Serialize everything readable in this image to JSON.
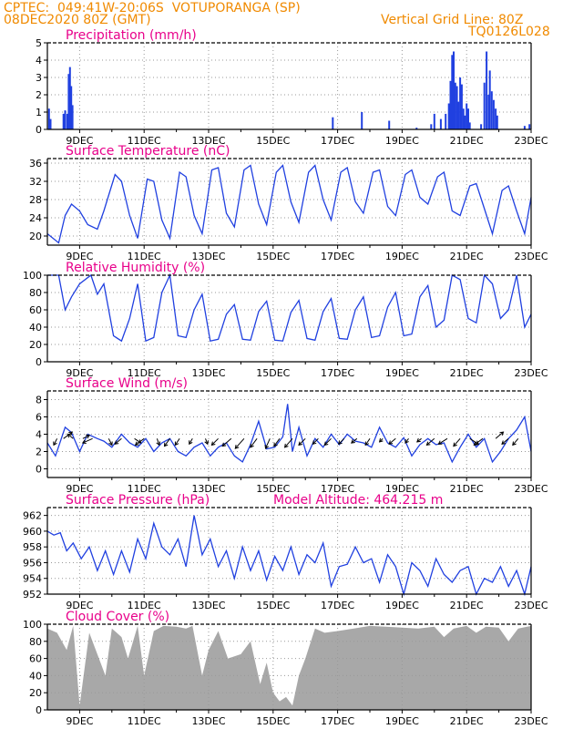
{
  "header": {
    "line1_left": "CPTEC:  049:41W-20:06S  VOTUPORANGA (SP)",
    "line2_left": "08DEC2020 80Z (GMT)",
    "line1_right": "Vertical Grid Line: 80Z",
    "line2_right": "TQ0126L028"
  },
  "colors": {
    "header": "#f08a00",
    "title": "#e8008a",
    "series": "#2040e0",
    "cloud_fill": "#a8a8a8",
    "grid": "#999999",
    "frame": "#000000"
  },
  "chart_data": [
    {
      "id": "precip",
      "type": "bar",
      "title": "Precipitation (mm/h)",
      "ylim": [
        0,
        5
      ],
      "yticks": [
        0,
        1,
        2,
        3,
        4,
        5
      ],
      "xlim": [
        8.0,
        23.0
      ],
      "xticks": [
        9,
        11,
        13,
        15,
        17,
        19,
        21,
        23
      ],
      "xticklabels": [
        "9DEC",
        "11DEC",
        "13DEC",
        "15DEC",
        "17DEC",
        "19DEC",
        "21DEC",
        "23DEC"
      ],
      "grid": true,
      "x": [
        8.05,
        8.1,
        8.5,
        8.55,
        8.62,
        8.66,
        8.7,
        8.74,
        8.78,
        16.85,
        17.75,
        18.6,
        19.45,
        19.9,
        20.0,
        20.2,
        20.35,
        20.45,
        20.5,
        20.55,
        20.6,
        20.65,
        20.7,
        20.75,
        20.8,
        20.85,
        20.9,
        20.95,
        21.0,
        21.05,
        21.1,
        21.45,
        21.55,
        21.62,
        21.68,
        21.72,
        21.78,
        21.84,
        21.9,
        21.95,
        22.8,
        22.95
      ],
      "values": [
        1.2,
        0.6,
        0.9,
        1.1,
        0.9,
        3.2,
        3.6,
        2.5,
        1.4,
        0.7,
        1.0,
        0.5,
        0.1,
        0.3,
        0.9,
        0.6,
        0.9,
        1.5,
        2.8,
        4.3,
        4.5,
        2.7,
        2.5,
        1.6,
        3.0,
        2.6,
        1.2,
        0.8,
        1.5,
        1.2,
        0.4,
        0.3,
        2.7,
        4.5,
        2.0,
        3.4,
        2.2,
        1.7,
        1.2,
        0.8,
        0.2,
        0.3
      ]
    },
    {
      "id": "temp",
      "type": "line",
      "title": "Surface Temperature (nC)",
      "ylim": [
        18,
        37
      ],
      "yticks": [
        20,
        24,
        28,
        32,
        36
      ],
      "xlim": [
        8.0,
        23.0
      ],
      "xticks": [
        9,
        11,
        13,
        15,
        17,
        19,
        21,
        23
      ],
      "xticklabels": [
        "9DEC",
        "11DEC",
        "13DEC",
        "15DEC",
        "17DEC",
        "19DEC",
        "21DEC",
        "23DEC"
      ],
      "grid": true,
      "x": [
        8.0,
        8.35,
        8.55,
        8.75,
        9.0,
        9.25,
        9.55,
        9.75,
        10.1,
        10.3,
        10.55,
        10.8,
        11.1,
        11.3,
        11.55,
        11.8,
        12.1,
        12.3,
        12.55,
        12.8,
        13.1,
        13.3,
        13.55,
        13.8,
        14.1,
        14.3,
        14.55,
        14.8,
        15.1,
        15.3,
        15.55,
        15.8,
        16.1,
        16.3,
        16.55,
        16.8,
        17.1,
        17.3,
        17.55,
        17.8,
        18.1,
        18.3,
        18.55,
        18.8,
        19.1,
        19.3,
        19.55,
        19.8,
        20.1,
        20.3,
        20.55,
        20.8,
        21.1,
        21.3,
        21.55,
        21.8,
        22.1,
        22.3,
        22.55,
        22.8,
        23.0
      ],
      "values": [
        20.5,
        18.5,
        24.5,
        27,
        25.5,
        22.5,
        21.5,
        25.5,
        33.5,
        32,
        24.5,
        19.5,
        32.5,
        32,
        23.5,
        19.5,
        34,
        33,
        24.5,
        20.5,
        34.5,
        35,
        25,
        22,
        34.5,
        35.5,
        27,
        22.5,
        34,
        35.5,
        27.5,
        23,
        34,
        35.5,
        28,
        23.5,
        34,
        35,
        27.5,
        25,
        34,
        34.5,
        26.5,
        24.5,
        33.5,
        34.5,
        28.5,
        27,
        33,
        34,
        25.5,
        24.5,
        31,
        31.5,
        26,
        20.5,
        30,
        31,
        25.5,
        20.5,
        28.5
      ]
    },
    {
      "id": "rh",
      "type": "line",
      "title": "Relative Humidity (%)",
      "ylim": [
        0,
        100
      ],
      "yticks": [
        0,
        20,
        40,
        60,
        80,
        100
      ],
      "xlim": [
        8.0,
        23.0
      ],
      "xticks": [
        9,
        11,
        13,
        15,
        17,
        19,
        21,
        23
      ],
      "xticklabels": [
        "9DEC",
        "11DEC",
        "13DEC",
        "15DEC",
        "17DEC",
        "19DEC",
        "21DEC",
        "23DEC"
      ],
      "grid": true,
      "x": [
        8.0,
        8.35,
        8.55,
        8.75,
        9.0,
        9.35,
        9.55,
        9.75,
        10.05,
        10.3,
        10.55,
        10.8,
        11.05,
        11.3,
        11.55,
        11.8,
        12.05,
        12.3,
        12.55,
        12.8,
        13.05,
        13.3,
        13.55,
        13.8,
        14.05,
        14.3,
        14.55,
        14.8,
        15.05,
        15.3,
        15.55,
        15.8,
        16.05,
        16.3,
        16.55,
        16.8,
        17.05,
        17.3,
        17.55,
        17.8,
        18.05,
        18.3,
        18.55,
        18.8,
        19.05,
        19.3,
        19.55,
        19.8,
        20.05,
        20.3,
        20.55,
        20.8,
        21.05,
        21.3,
        21.55,
        21.8,
        22.05,
        22.3,
        22.55,
        22.8,
        23.0
      ],
      "values": [
        100,
        100,
        60,
        75,
        90,
        100,
        78,
        90,
        30,
        24,
        50,
        90,
        24,
        28,
        80,
        100,
        30,
        28,
        60,
        78,
        24,
        26,
        55,
        66,
        26,
        25,
        58,
        70,
        25,
        24,
        57,
        71,
        27,
        25,
        58,
        73,
        27,
        26,
        60,
        75,
        28,
        30,
        63,
        80,
        30,
        32,
        75,
        88,
        40,
        48,
        100,
        95,
        50,
        45,
        100,
        90,
        50,
        60,
        100,
        40,
        55
      ]
    },
    {
      "id": "wind",
      "type": "line",
      "title": "Surface Wind (m/s)",
      "ylim": [
        -1,
        9
      ],
      "yticks": [
        0,
        2,
        4,
        6,
        8
      ],
      "xlim": [
        8.0,
        23.0
      ],
      "xticks": [
        9,
        11,
        13,
        15,
        17,
        19,
        21,
        23
      ],
      "xticklabels": [
        "9DEC",
        "11DEC",
        "13DEC",
        "15DEC",
        "17DEC",
        "19DEC",
        "21DEC",
        "23DEC"
      ],
      "grid": true,
      "x": [
        8.0,
        8.25,
        8.55,
        8.75,
        9.0,
        9.25,
        9.55,
        9.75,
        10.0,
        10.3,
        10.55,
        10.8,
        11.05,
        11.3,
        11.55,
        11.8,
        12.05,
        12.3,
        12.55,
        12.8,
        13.05,
        13.3,
        13.55,
        13.8,
        14.05,
        14.3,
        14.55,
        14.8,
        15.05,
        15.3,
        15.45,
        15.6,
        15.8,
        16.05,
        16.3,
        16.55,
        16.8,
        17.05,
        17.3,
        17.55,
        17.8,
        18.05,
        18.3,
        18.55,
        18.8,
        19.05,
        19.3,
        19.55,
        19.8,
        20.05,
        20.3,
        20.55,
        20.8,
        21.05,
        21.3,
        21.55,
        21.8,
        22.05,
        22.3,
        22.55,
        22.8,
        23.0
      ],
      "values": [
        3,
        1.5,
        4.8,
        4.2,
        2,
        4,
        3.5,
        3.2,
        2.5,
        4,
        3,
        2.5,
        3.5,
        2,
        3,
        3.5,
        2,
        1.5,
        2.5,
        3,
        1.5,
        2.5,
        3,
        1.5,
        0.8,
        2.8,
        5.5,
        2.3,
        2.5,
        3.7,
        7.5,
        2,
        4.8,
        1.5,
        3.5,
        2.5,
        4,
        2.8,
        4,
        3.2,
        3,
        2.5,
        4.8,
        3,
        2.5,
        3.6,
        1.5,
        2.8,
        3.5,
        2.8,
        3,
        0.8,
        2.5,
        4,
        2.5,
        3.5,
        0.8,
        2,
        3.5,
        4.5,
        6,
        2
      ]
    },
    {
      "id": "pressure",
      "type": "line",
      "title": "Surface Pressure (hPa)",
      "annotation": "Model Altitude: 464.215 m",
      "ylim": [
        952,
        963
      ],
      "yticks": [
        952,
        954,
        956,
        958,
        960,
        962
      ],
      "xlim": [
        8.0,
        23.0
      ],
      "xticks": [
        9,
        11,
        13,
        15,
        17,
        19,
        21,
        23
      ],
      "xticklabels": [
        "9DEC",
        "11DEC",
        "13DEC",
        "15DEC",
        "17DEC",
        "19DEC",
        "21DEC",
        "23DEC"
      ],
      "grid": true,
      "x": [
        8.0,
        8.2,
        8.4,
        8.6,
        8.8,
        9.05,
        9.3,
        9.55,
        9.8,
        10.05,
        10.3,
        10.55,
        10.8,
        11.05,
        11.3,
        11.55,
        11.8,
        12.05,
        12.3,
        12.55,
        12.8,
        13.05,
        13.3,
        13.55,
        13.8,
        14.05,
        14.3,
        14.55,
        14.8,
        15.05,
        15.3,
        15.55,
        15.8,
        16.05,
        16.3,
        16.55,
        16.8,
        17.05,
        17.3,
        17.55,
        17.8,
        18.05,
        18.3,
        18.55,
        18.8,
        19.05,
        19.3,
        19.55,
        19.8,
        20.05,
        20.3,
        20.55,
        20.8,
        21.05,
        21.3,
        21.55,
        21.8,
        22.05,
        22.3,
        22.55,
        22.8,
        23.0
      ],
      "values": [
        960,
        959.5,
        959.8,
        957.5,
        958.5,
        956.5,
        958,
        955,
        957.5,
        954.5,
        957.5,
        954.8,
        959,
        956.5,
        961,
        958,
        957,
        959,
        955.5,
        962,
        957,
        959,
        955.5,
        957.5,
        954,
        958,
        955,
        957.5,
        953.8,
        956.8,
        955,
        958,
        954.5,
        957,
        956,
        958.5,
        953,
        955.5,
        955.8,
        958,
        956,
        956.5,
        953.5,
        957,
        955.5,
        951.5,
        956,
        955,
        953,
        956.5,
        954.5,
        953.5,
        955,
        955.5,
        952,
        954,
        953.5,
        955.5,
        953,
        955,
        952,
        955.5
      ]
    },
    {
      "id": "cloud",
      "type": "area",
      "title": "Cloud Cover (%)",
      "ylim": [
        0,
        100
      ],
      "yticks": [
        0,
        20,
        40,
        60,
        80,
        100
      ],
      "xlim": [
        8.0,
        23.0
      ],
      "xticks": [
        9,
        11,
        13,
        15,
        17,
        19,
        21,
        23
      ],
      "xticklabels": [
        "9DEC",
        "11DEC",
        "13DEC",
        "15DEC",
        "17DEC",
        "19DEC",
        "21DEC",
        "23DEC"
      ],
      "grid": true,
      "x": [
        8.0,
        8.3,
        8.6,
        8.8,
        9.0,
        9.3,
        9.5,
        9.8,
        10.0,
        10.3,
        10.5,
        10.8,
        11.0,
        11.3,
        11.6,
        12.0,
        12.3,
        12.5,
        12.8,
        13.0,
        13.3,
        13.6,
        14.0,
        14.3,
        14.6,
        14.8,
        15.0,
        15.2,
        15.4,
        15.6,
        15.8,
        16.0,
        16.3,
        16.6,
        17.0,
        17.5,
        18.0,
        18.5,
        19.0,
        19.5,
        20.0,
        20.3,
        20.6,
        21.0,
        21.3,
        21.6,
        22.0,
        22.3,
        22.6,
        23.0
      ],
      "values": [
        95,
        90,
        70,
        98,
        5,
        90,
        70,
        40,
        95,
        85,
        60,
        98,
        40,
        92,
        98,
        97,
        95,
        98,
        40,
        70,
        92,
        60,
        65,
        80,
        30,
        55,
        20,
        10,
        15,
        5,
        40,
        60,
        95,
        90,
        92,
        95,
        98,
        97,
        96,
        95,
        97,
        85,
        95,
        98,
        90,
        97,
        96,
        80,
        95,
        98
      ]
    }
  ],
  "wind_vectors": {
    "x": [
      8.3,
      8.5,
      8.8,
      9.1,
      9.4,
      9.9,
      10.3,
      10.7,
      11.0,
      11.4,
      11.8,
      12.1,
      12.5,
      12.9,
      13.3,
      13.7,
      14.1,
      14.5,
      14.9,
      15.2,
      15.6,
      16.0,
      16.4,
      16.8,
      17.2,
      17.6,
      18.0,
      18.4,
      18.8,
      19.2,
      19.6,
      20.0,
      20.4,
      20.8,
      21.1,
      21.5,
      21.9,
      22.3,
      22.6
    ],
    "u": [
      -0.3,
      0.8,
      -0.5,
      0.6,
      -0.9,
      0.3,
      -0.6,
      0.6,
      -0.8,
      0.2,
      -0.5,
      -0.4,
      -0.3,
      0.2,
      -0.6,
      -0.8,
      -0.8,
      -0.6,
      -0.4,
      -0.5,
      -0.7,
      -0.6,
      -0.5,
      -0.6,
      -0.5,
      -0.5,
      -0.4,
      -0.3,
      -0.6,
      -0.3,
      -0.4,
      -0.7,
      -0.8,
      -0.6,
      0.8,
      -0.8,
      0.7,
      -0.6,
      -0.5
    ],
    "v": [
      -0.6,
      0.6,
      0.4,
      0.3,
      -0.4,
      -0.6,
      -0.5,
      -0.4,
      -0.6,
      -0.6,
      -0.7,
      -0.6,
      -0.5,
      -0.5,
      -0.6,
      -0.7,
      -0.9,
      -0.8,
      -0.9,
      -0.7,
      -0.8,
      -0.6,
      -0.5,
      -0.6,
      -0.5,
      -0.4,
      -0.6,
      -0.3,
      -0.5,
      -0.4,
      -0.3,
      -0.6,
      -0.5,
      -0.7,
      -0.5,
      -0.6,
      0.6,
      -0.5,
      -0.6
    ]
  }
}
